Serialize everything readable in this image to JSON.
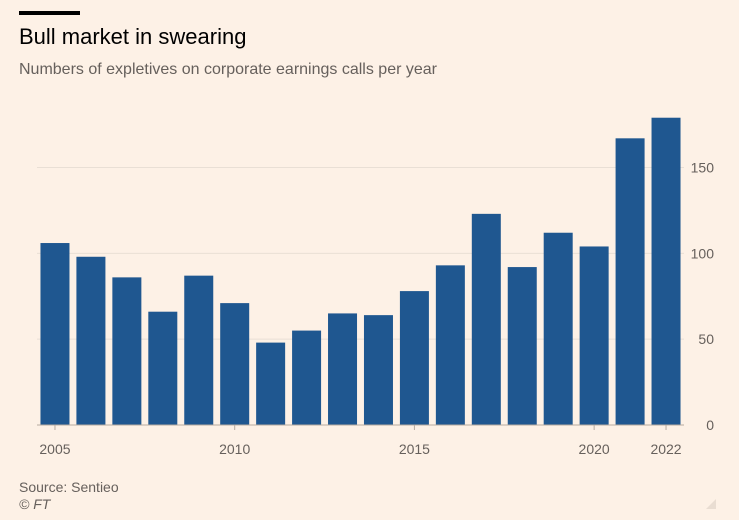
{
  "header": {
    "title": "Bull market in swearing",
    "subtitle": "Numbers of expletives on corporate earnings calls per year"
  },
  "footer": {
    "source": "Source: Sentieo",
    "credit": "© FT"
  },
  "colors": {
    "background": "#fdf1e6",
    "bar": "#1f5790",
    "grid": "#e9dfd5",
    "axis_text": "#66605c"
  },
  "chart_data": {
    "type": "bar",
    "title": "Bull market in swearing",
    "subtitle": "Numbers of expletives on corporate earnings calls per year",
    "categories": [
      2005,
      2006,
      2007,
      2008,
      2009,
      2010,
      2011,
      2012,
      2013,
      2014,
      2015,
      2016,
      2017,
      2018,
      2019,
      2020,
      2021,
      2022
    ],
    "values": [
      106,
      98,
      86,
      66,
      87,
      71,
      48,
      55,
      65,
      64,
      78,
      93,
      123,
      92,
      112,
      104,
      167,
      179
    ],
    "x_tick_labels": [
      "2005",
      "2010",
      "2015",
      "2020",
      "2022"
    ],
    "y_ticks": [
      0,
      50,
      100,
      150
    ],
    "ylim": [
      0,
      180
    ],
    "y_axis_side": "right",
    "grid": true,
    "legend": false,
    "xlabel": "",
    "ylabel": ""
  }
}
